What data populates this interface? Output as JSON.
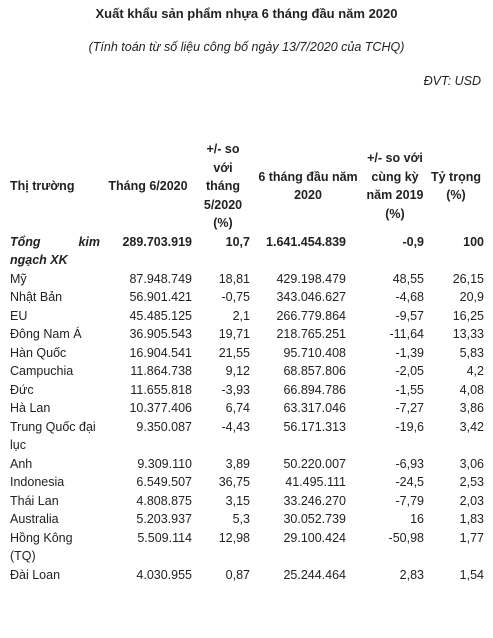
{
  "title": "Xuất khẩu sản phẩm nhựa 6 tháng đầu năm 2020",
  "subtitle": "(Tính toán từ số liệu công bố ngày 13/7/2020 của TCHQ)",
  "unit": "ĐVT: USD",
  "headers": [
    "Thị trường",
    "Tháng 6/2020",
    "+/- so với tháng 5/2020 (%)",
    "6 tháng đầu năm 2020",
    "+/- so với cùng kỳ năm 2019 (%)",
    "Tỷ trọng (%)"
  ],
  "total": [
    "Tổng kim ngạch XK",
    "289.703.919",
    "10,7",
    "1.641.454.839",
    "-0,9",
    "100"
  ],
  "rows": [
    [
      "Mỹ",
      "87.948.749",
      "18,81",
      "429.198.479",
      "48,55",
      "26,15"
    ],
    [
      "Nhật Bản",
      "56.901.421",
      "-0,75",
      "343.046.627",
      "-4,68",
      "20,9"
    ],
    [
      "EU",
      "45.485.125",
      "2,1",
      "266.779.864",
      "-9,57",
      "16,25"
    ],
    [
      "Đông Nam Á",
      "36.905.543",
      "19,71",
      "218.765.251",
      "-11,64",
      "13,33"
    ],
    [
      "Hàn Quốc",
      "16.904.541",
      "21,55",
      "95.710.408",
      "-1,39",
      "5,83"
    ],
    [
      "Campuchia",
      "11.864.738",
      "9,12",
      "68.857.806",
      "-2,05",
      "4,2"
    ],
    [
      "Đức",
      "11.655.818",
      "-3,93",
      "66.894.786",
      "-1,55",
      "4,08"
    ],
    [
      "Hà Lan",
      "10.377.406",
      "6,74",
      "63.317.046",
      "-7,27",
      "3,86"
    ],
    [
      "Trung Quốc đại lục",
      "9.350.087",
      "-4,43",
      "56.171.313",
      "-19,6",
      "3,42"
    ],
    [
      "Anh",
      "9.309.110",
      "3,89",
      "50.220.007",
      "-6,93",
      "3,06"
    ],
    [
      "Indonesia",
      "6.549.507",
      "36,75",
      "41.495.111",
      "-24,5",
      "2,53"
    ],
    [
      "Thái Lan",
      "4.808.875",
      "3,15",
      "33.246.270",
      "-7,79",
      "2,03"
    ],
    [
      "Australia",
      "5.203.937",
      "5,3",
      "30.052.739",
      "16",
      "1,83"
    ],
    [
      "Hồng Kông (TQ)",
      "5.509.114",
      "12,98",
      "29.100.424",
      "-50,98",
      "1,77"
    ],
    [
      "Đài Loan",
      "4.030.955",
      "0,87",
      "25.244.464",
      "2,83",
      "1,54"
    ]
  ]
}
